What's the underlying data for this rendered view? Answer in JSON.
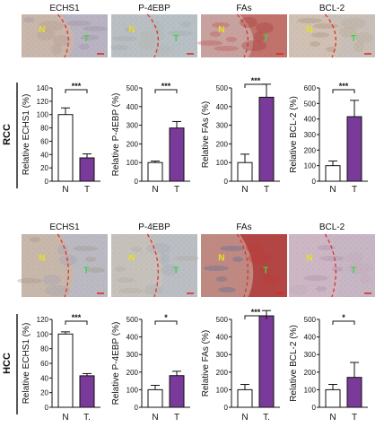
{
  "markers": [
    "ECHS1",
    "P-4EBP",
    "FAs",
    "BCL-2"
  ],
  "colors": {
    "normal_bar": "#ffffff",
    "tumor_bar": "#7a3a9a",
    "boundary": "#e03030",
    "scale_bar": "#e02020"
  },
  "micrograph_labels": {
    "normal": "N",
    "tumor": "T"
  },
  "chart_data": [
    {
      "panel": "RCC",
      "type": "bar",
      "charts": [
        {
          "marker": "ECHS1",
          "ylabel": "Relative ECHS1 (%)",
          "ylim": [
            0,
            140
          ],
          "yticks": [
            0,
            20,
            40,
            60,
            80,
            100,
            120,
            140
          ],
          "categories": [
            "N",
            "T"
          ],
          "values": [
            100,
            35
          ],
          "errors": [
            10,
            6
          ],
          "significance": "***"
        },
        {
          "marker": "P-4EBP",
          "ylabel": "Relative P-4EBP (%)",
          "ylim": [
            0,
            500
          ],
          "yticks": [
            0,
            100,
            200,
            300,
            400,
            500
          ],
          "categories": [
            "N",
            "T"
          ],
          "values": [
            100,
            285
          ],
          "errors": [
            8,
            35
          ],
          "significance": "***"
        },
        {
          "marker": "FAs",
          "ylabel": "Relative FAs (%)",
          "ylim": [
            0,
            500
          ],
          "yticks": [
            0,
            100,
            200,
            300,
            400,
            500
          ],
          "categories": [
            "N",
            "T"
          ],
          "values": [
            100,
            450
          ],
          "errors": [
            45,
            70
          ],
          "significance": "***"
        },
        {
          "marker": "BCL-2",
          "ylabel": "Relative BCL-2 (%)",
          "ylim": [
            0,
            600
          ],
          "yticks": [
            0,
            100,
            200,
            300,
            400,
            500,
            600
          ],
          "categories": [
            "N",
            "T"
          ],
          "values": [
            100,
            415
          ],
          "errors": [
            30,
            105
          ],
          "significance": "***"
        }
      ]
    },
    {
      "panel": "HCC",
      "type": "bar",
      "charts": [
        {
          "marker": "ECHS1",
          "ylabel": "Relative ECHS1 (%)",
          "ylim": [
            0,
            120
          ],
          "yticks": [
            0,
            20,
            40,
            60,
            80,
            100,
            120
          ],
          "categories": [
            "N",
            "T."
          ],
          "values": [
            100,
            43
          ],
          "errors": [
            3,
            3
          ],
          "significance": "***"
        },
        {
          "marker": "P-4EBP",
          "ylabel": "Relative P-4EBP (%)",
          "ylim": [
            0,
            500
          ],
          "yticks": [
            0,
            100,
            200,
            300,
            400,
            500
          ],
          "categories": [
            "N",
            "T"
          ],
          "values": [
            100,
            180
          ],
          "errors": [
            25,
            25
          ],
          "significance": "*"
        },
        {
          "marker": "FAs",
          "ylabel": "Relative FAs (%)",
          "ylim": [
            0,
            500
          ],
          "yticks": [
            0,
            100,
            200,
            300,
            400,
            500
          ],
          "categories": [
            "N",
            "T."
          ],
          "values": [
            100,
            520
          ],
          "errors": [
            30,
            30
          ],
          "significance": "***"
        },
        {
          "marker": "BCL-2",
          "ylabel": "Relative BCL-2 (%)",
          "ylim": [
            0,
            500
          ],
          "yticks": [
            0,
            100,
            200,
            300,
            400,
            500
          ],
          "categories": [
            "N",
            "T"
          ],
          "values": [
            100,
            170
          ],
          "errors": [
            30,
            85
          ],
          "significance": "*"
        }
      ]
    }
  ]
}
